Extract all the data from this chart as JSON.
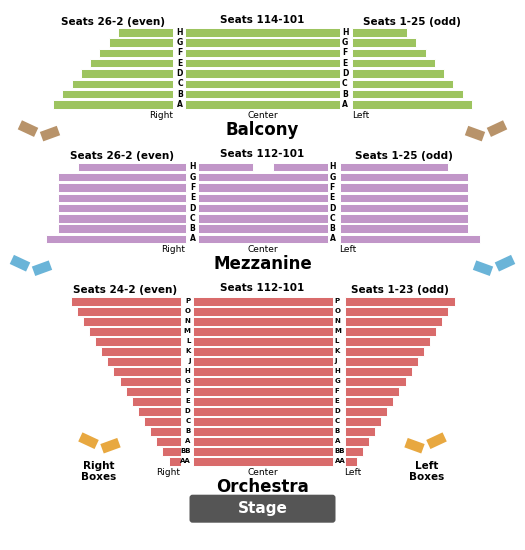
{
  "bg_color": "#ffffff",
  "balcony_color": "#9dc45f",
  "mezzanine_color": "#c196c8",
  "orchestra_color": "#d96b6b",
  "stage_color": "#555555",
  "box_balcony_color": "#b8936a",
  "box_mezz_color": "#6ab4d8",
  "box_orch_color": "#e8a840",
  "balcony_rows": [
    "H",
    "G",
    "F",
    "E",
    "D",
    "C",
    "B",
    "A"
  ],
  "mezzanine_rows": [
    "H",
    "G",
    "F",
    "E",
    "D",
    "C",
    "B",
    "A"
  ],
  "orchestra_rows": [
    "P",
    "O",
    "N",
    "M",
    "L",
    "K",
    "J",
    "H",
    "G",
    "F",
    "E",
    "D",
    "C",
    "B",
    "A",
    "BB",
    "AA"
  ],
  "bal_center_title": "Seats 114-101",
  "bal_left_title": "Seats 26-2 (even)",
  "bal_right_title": "Seats 1-25 (odd)",
  "mezz_center_title": "Seats 112-101",
  "mezz_left_title": "Seats 26-2 (even)",
  "mezz_right_title": "Seats 1-25 (odd)",
  "orch_center_title": "Seats 112-101",
  "orch_left_title": "Seats 24-2 (even)",
  "orch_right_title": "Seats 1-23 (odd)",
  "balcony_label": "Balcony",
  "mezzanine_label": "Mezzanine",
  "orchestra_label": "Orchestra",
  "stage_label": "Stage",
  "right_label": "Right",
  "left_label": "Left",
  "center_label": "Center",
  "right_boxes_label": "Right\nBoxes",
  "left_boxes_label": "Left\nBoxes"
}
